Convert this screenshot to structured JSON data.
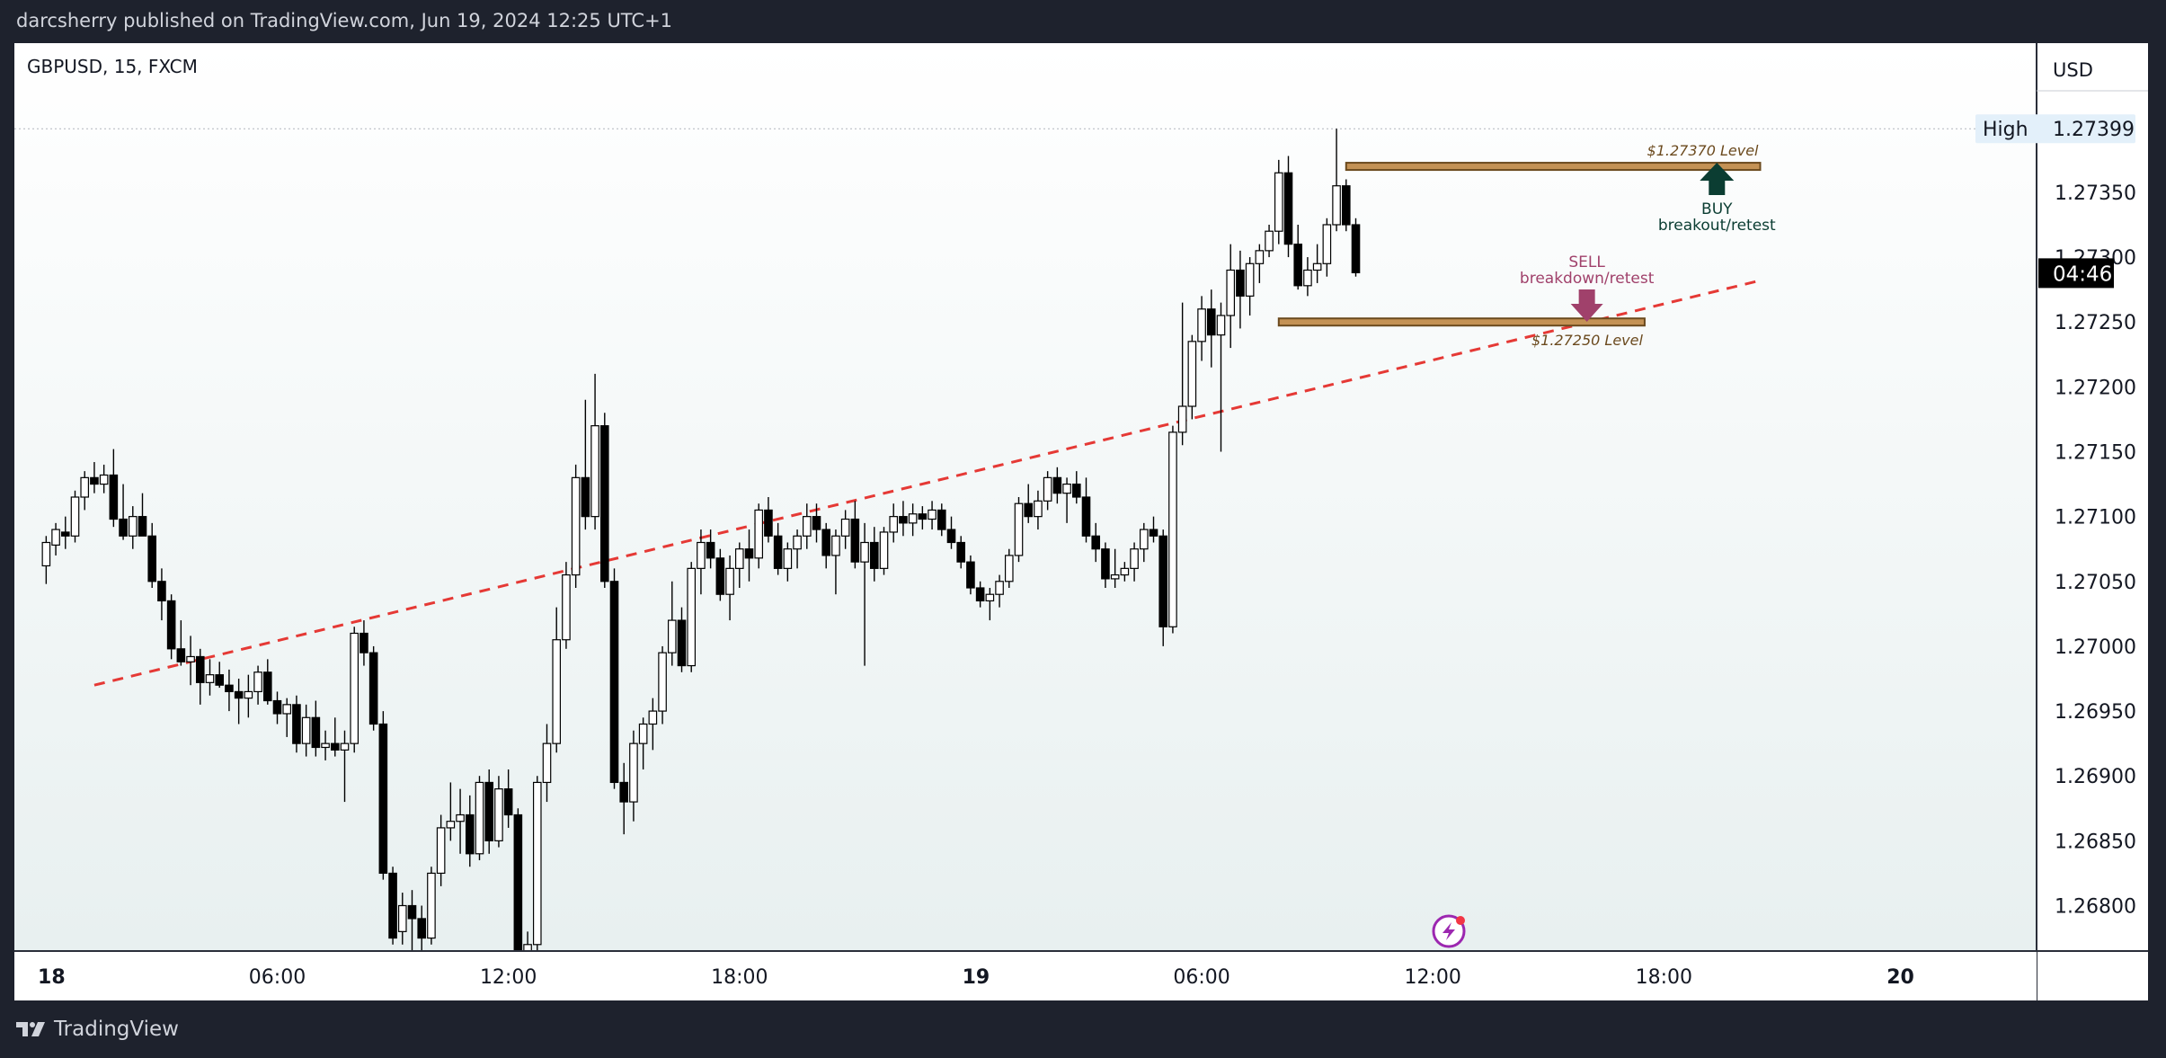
{
  "header": {
    "published_text": "darcsherry published on TradingView.com, Jun 19, 2024 12:25 UTC+1"
  },
  "footer": {
    "brand": "TradingView",
    "brand_icon": "tradingview-logo-icon"
  },
  "chart_data": {
    "type": "candlestick",
    "symbol_line": "GBPUSD, 15, FXCM",
    "currency": "USD",
    "price_ticks": [
      "1.27350",
      "1.27300",
      "1.27250",
      "1.27200",
      "1.27150",
      "1.27100",
      "1.27050",
      "1.27000",
      "1.26950",
      "1.26900",
      "1.26850",
      "1.26800"
    ],
    "price_tick_values": [
      1.2735,
      1.273,
      1.2725,
      1.272,
      1.2715,
      1.271,
      1.2705,
      1.27,
      1.2695,
      1.269,
      1.2685,
      1.268
    ],
    "y_range": [
      1.26765,
      1.27465
    ],
    "time_ticks": [
      {
        "label": "18",
        "t": 0,
        "bold": true
      },
      {
        "label": "06:00",
        "t": 24
      },
      {
        "label": "12:00",
        "t": 48
      },
      {
        "label": "18:00",
        "t": 72
      },
      {
        "label": "19",
        "t": 96,
        "bold": true
      },
      {
        "label": "06:00",
        "t": 120
      },
      {
        "label": "12:00",
        "t": 144
      },
      {
        "label": "18:00",
        "t": 168
      },
      {
        "label": "20",
        "t": 192,
        "bold": true
      }
    ],
    "x_range": [
      -3.3,
      206.7
    ],
    "high_label": "High",
    "high_value": "1.27399",
    "high_price": 1.27399,
    "countdown": "04:46",
    "countdown_price": 1.27288,
    "trend_line": {
      "from": {
        "t": 5,
        "price": 1.2697
      },
      "to": {
        "t": 178,
        "price": 1.27282
      },
      "color": "#e53935"
    },
    "levels": [
      {
        "price": 1.2737,
        "t_start": 135,
        "t_end": 178,
        "label": "$1.27370 Level",
        "label_pos": "above"
      },
      {
        "price": 1.2725,
        "t_start": 128,
        "t_end": 166,
        "label": "$1.27250 Level",
        "label_pos": "below"
      }
    ],
    "annotations": [
      {
        "line1": "BUY",
        "line2": "breakout/retest",
        "t": 173.5,
        "arrow": "up",
        "color": "#0b3d32"
      },
      {
        "line1": "SELL",
        "line2": "breakdown/retest",
        "t": 160,
        "arrow": "down",
        "color": "#a0416b"
      }
    ],
    "candles": [
      [
        1.27062,
        1.27085,
        1.27048,
        1.2708
      ],
      [
        1.27078,
        1.27095,
        1.2707,
        1.2709
      ],
      [
        1.27088,
        1.271,
        1.27075,
        1.27085
      ],
      [
        1.27085,
        1.2712,
        1.2708,
        1.27115
      ],
      [
        1.27115,
        1.27135,
        1.27105,
        1.2713
      ],
      [
        1.2713,
        1.27142,
        1.27118,
        1.27125
      ],
      [
        1.27125,
        1.2714,
        1.27118,
        1.27132
      ],
      [
        1.27132,
        1.27152,
        1.27092,
        1.27098
      ],
      [
        1.27098,
        1.27125,
        1.27082,
        1.27085
      ],
      [
        1.27085,
        1.27108,
        1.27075,
        1.271
      ],
      [
        1.271,
        1.27118,
        1.27085,
        1.27085
      ],
      [
        1.27085,
        1.27095,
        1.27045,
        1.2705
      ],
      [
        1.2705,
        1.2706,
        1.2702,
        1.27035
      ],
      [
        1.27035,
        1.2704,
        1.2699,
        1.26998
      ],
      [
        1.26998,
        1.2702,
        1.26985,
        1.26988
      ],
      [
        1.26988,
        1.27008,
        1.2697,
        1.26992
      ],
      [
        1.26992,
        1.26998,
        1.26955,
        1.26972
      ],
      [
        1.26972,
        1.2699,
        1.26962,
        1.26978
      ],
      [
        1.26978,
        1.26988,
        1.26968,
        1.2697
      ],
      [
        1.2697,
        1.26982,
        1.2695,
        1.26965
      ],
      [
        1.26965,
        1.26975,
        1.2694,
        1.2696
      ],
      [
        1.2696,
        1.26978,
        1.26945,
        1.26965
      ],
      [
        1.26965,
        1.26985,
        1.26955,
        1.2698
      ],
      [
        1.2698,
        1.2699,
        1.26955,
        1.26958
      ],
      [
        1.26958,
        1.26965,
        1.2694,
        1.26948
      ],
      [
        1.26948,
        1.2696,
        1.2693,
        1.26955
      ],
      [
        1.26955,
        1.26962,
        1.26918,
        1.26925
      ],
      [
        1.26925,
        1.26955,
        1.26915,
        1.26945
      ],
      [
        1.26945,
        1.26958,
        1.26915,
        1.26922
      ],
      [
        1.26922,
        1.26935,
        1.26912,
        1.26925
      ],
      [
        1.26925,
        1.26945,
        1.26915,
        1.2692
      ],
      [
        1.2692,
        1.26935,
        1.2688,
        1.26925
      ],
      [
        1.26925,
        1.27015,
        1.26918,
        1.2701
      ],
      [
        1.2701,
        1.2702,
        1.26985,
        1.26995
      ],
      [
        1.26995,
        1.27,
        1.26935,
        1.2694
      ],
      [
        1.2694,
        1.2695,
        1.2682,
        1.26825
      ],
      [
        1.26825,
        1.2683,
        1.2677,
        1.26775
      ],
      [
        1.2678,
        1.2681,
        1.2677,
        1.268
      ],
      [
        1.268,
        1.26812,
        1.2676,
        1.2679
      ],
      [
        1.2679,
        1.268,
        1.2676,
        1.26775
      ],
      [
        1.26775,
        1.2683,
        1.2677,
        1.26825
      ],
      [
        1.26825,
        1.2687,
        1.26815,
        1.2686
      ],
      [
        1.2686,
        1.26895,
        1.2685,
        1.26865
      ],
      [
        1.26865,
        1.2689,
        1.2684,
        1.2687
      ],
      [
        1.2687,
        1.26885,
        1.2683,
        1.2684
      ],
      [
        1.2684,
        1.269,
        1.26835,
        1.26895
      ],
      [
        1.26895,
        1.26905,
        1.2684,
        1.2685
      ],
      [
        1.2685,
        1.269,
        1.26845,
        1.2689
      ],
      [
        1.2689,
        1.26905,
        1.2686,
        1.2687
      ],
      [
        1.2687,
        1.26875,
        1.2676,
        1.26765
      ],
      [
        1.26765,
        1.2678,
        1.26755,
        1.2677
      ],
      [
        1.2677,
        1.269,
        1.26765,
        1.26895
      ],
      [
        1.26895,
        1.2694,
        1.2688,
        1.26925
      ],
      [
        1.26925,
        1.2703,
        1.26918,
        1.27005
      ],
      [
        1.27005,
        1.27065,
        1.26998,
        1.27055
      ],
      [
        1.27055,
        1.2714,
        1.27045,
        1.2713
      ],
      [
        1.2713,
        1.2719,
        1.2709,
        1.271
      ],
      [
        1.271,
        1.2721,
        1.2709,
        1.2717
      ],
      [
        1.2717,
        1.2718,
        1.27045,
        1.2705
      ],
      [
        1.2705,
        1.2706,
        1.2689,
        1.26895
      ],
      [
        1.26895,
        1.2691,
        1.26855,
        1.2688
      ],
      [
        1.2688,
        1.26935,
        1.26865,
        1.26925
      ],
      [
        1.26925,
        1.26945,
        1.26905,
        1.2694
      ],
      [
        1.2694,
        1.2696,
        1.2692,
        1.2695
      ],
      [
        1.2695,
        1.27,
        1.2694,
        1.26995
      ],
      [
        1.26995,
        1.2705,
        1.26985,
        1.2702
      ],
      [
        1.2702,
        1.2703,
        1.2698,
        1.26985
      ],
      [
        1.26985,
        1.27065,
        1.2698,
        1.2706
      ],
      [
        1.2706,
        1.2709,
        1.2704,
        1.2708
      ],
      [
        1.2708,
        1.2709,
        1.2706,
        1.27068
      ],
      [
        1.27068,
        1.27075,
        1.27035,
        1.2704
      ],
      [
        1.2704,
        1.2707,
        1.2702,
        1.2706
      ],
      [
        1.2706,
        1.2708,
        1.27045,
        1.27075
      ],
      [
        1.27075,
        1.2709,
        1.2705,
        1.27068
      ],
      [
        1.27068,
        1.2711,
        1.2706,
        1.27105
      ],
      [
        1.27105,
        1.27115,
        1.2708,
        1.27085
      ],
      [
        1.27085,
        1.27095,
        1.27055,
        1.2706
      ],
      [
        1.2706,
        1.2708,
        1.2705,
        1.27075
      ],
      [
        1.27075,
        1.2709,
        1.2706,
        1.27085
      ],
      [
        1.27085,
        1.2711,
        1.27075,
        1.271
      ],
      [
        1.271,
        1.2711,
        1.2708,
        1.2709
      ],
      [
        1.2709,
        1.27095,
        1.2706,
        1.2707
      ],
      [
        1.2707,
        1.2709,
        1.2704,
        1.27085
      ],
      [
        1.27085,
        1.27105,
        1.27075,
        1.27098
      ],
      [
        1.27098,
        1.27112,
        1.2706,
        1.27065
      ],
      [
        1.27065,
        1.27095,
        1.26985,
        1.2708
      ],
      [
        1.2708,
        1.27092,
        1.2705,
        1.2706
      ],
      [
        1.2706,
        1.27092,
        1.27055,
        1.27088
      ],
      [
        1.27088,
        1.2711,
        1.2708,
        1.271
      ],
      [
        1.271,
        1.27112,
        1.27085,
        1.27095
      ],
      [
        1.27095,
        1.2711,
        1.27085,
        1.27102
      ],
      [
        1.27102,
        1.27108,
        1.2709,
        1.27098
      ],
      [
        1.27098,
        1.27112,
        1.2709,
        1.27105
      ],
      [
        1.27105,
        1.2711,
        1.27085,
        1.2709
      ],
      [
        1.2709,
        1.271,
        1.27075,
        1.2708
      ],
      [
        1.2708,
        1.27085,
        1.2706,
        1.27065
      ],
      [
        1.27065,
        1.2707,
        1.2704,
        1.27045
      ],
      [
        1.27045,
        1.2705,
        1.2703,
        1.27035
      ],
      [
        1.27035,
        1.27045,
        1.2702,
        1.2704
      ],
      [
        1.2704,
        1.27055,
        1.2703,
        1.2705
      ],
      [
        1.2705,
        1.27075,
        1.27045,
        1.2707
      ],
      [
        1.2707,
        1.27115,
        1.27065,
        1.2711
      ],
      [
        1.2711,
        1.27125,
        1.27095,
        1.271
      ],
      [
        1.271,
        1.2712,
        1.2709,
        1.27112
      ],
      [
        1.27112,
        1.27135,
        1.27105,
        1.2713
      ],
      [
        1.2713,
        1.27138,
        1.2711,
        1.27118
      ],
      [
        1.27118,
        1.2713,
        1.27095,
        1.27125
      ],
      [
        1.27125,
        1.27135,
        1.2711,
        1.27115
      ],
      [
        1.27115,
        1.2713,
        1.2708,
        1.27085
      ],
      [
        1.27085,
        1.27095,
        1.27065,
        1.27075
      ],
      [
        1.27075,
        1.2708,
        1.27045,
        1.27052
      ],
      [
        1.27052,
        1.27075,
        1.27045,
        1.27055
      ],
      [
        1.27055,
        1.27065,
        1.2705,
        1.2706
      ],
      [
        1.2706,
        1.2708,
        1.2705,
        1.27075
      ],
      [
        1.27075,
        1.27095,
        1.27065,
        1.2709
      ],
      [
        1.2709,
        1.271,
        1.2708,
        1.27085
      ],
      [
        1.27085,
        1.2709,
        1.27,
        1.27015
      ],
      [
        1.27015,
        1.2717,
        1.2701,
        1.27165
      ],
      [
        1.27165,
        1.27265,
        1.27155,
        1.27185
      ],
      [
        1.27185,
        1.2724,
        1.27175,
        1.27235
      ],
      [
        1.27235,
        1.2727,
        1.2722,
        1.2726
      ],
      [
        1.2726,
        1.27275,
        1.27215,
        1.2724
      ],
      [
        1.2724,
        1.27265,
        1.2715,
        1.27255
      ],
      [
        1.27255,
        1.2731,
        1.2723,
        1.2729
      ],
      [
        1.2729,
        1.27305,
        1.27245,
        1.2727
      ],
      [
        1.2727,
        1.273,
        1.27255,
        1.27295
      ],
      [
        1.27295,
        1.2731,
        1.2728,
        1.27305
      ],
      [
        1.27305,
        1.27325,
        1.273,
        1.2732
      ],
      [
        1.2732,
        1.27375,
        1.2731,
        1.27365
      ],
      [
        1.27365,
        1.27378,
        1.273,
        1.2731
      ],
      [
        1.2731,
        1.27325,
        1.27275,
        1.27278
      ],
      [
        1.27278,
        1.273,
        1.2727,
        1.2729
      ],
      [
        1.2729,
        1.2731,
        1.2728,
        1.27295
      ],
      [
        1.27295,
        1.2733,
        1.27285,
        1.27325
      ],
      [
        1.27325,
        1.27399,
        1.2732,
        1.27355
      ],
      [
        1.27355,
        1.2736,
        1.2732,
        1.27325
      ],
      [
        1.27325,
        1.2733,
        1.27285,
        1.27288
      ]
    ]
  }
}
